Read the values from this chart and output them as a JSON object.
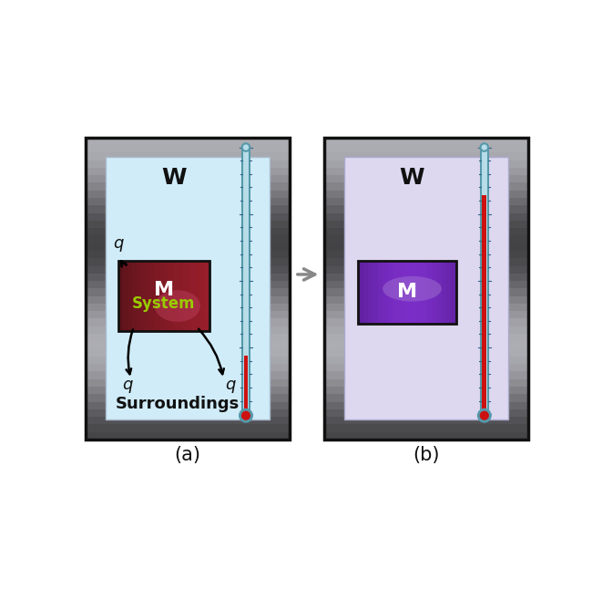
{
  "fig_width": 6.5,
  "fig_height": 6.47,
  "bg_color": "#ffffff",
  "metal_dark_gray": "#2a2a2a",
  "metal_mid_gray": "#808080",
  "metal_light_gray": "#cccccc",
  "container_inner_color_a": "#d0ecf8",
  "container_inner_color_b": "#ddd8f0",
  "metal_color_a_dark": "#5a0a14",
  "metal_color_a_mid": "#9b2030",
  "metal_color_a_light": "#c04060",
  "metal_color_b_dark": "#3a1850",
  "metal_color_b_mid": "#7040a0",
  "metal_color_b_light": "#9966cc",
  "thermometer_glass_color": "#b8dde8",
  "thermometer_glass_edge": "#5599aa",
  "thermometer_mercury_color": "#cc1111",
  "thermometer_tick_color": "#336688",
  "label_a": "(a)",
  "label_b": "(b)",
  "W_label": "W",
  "M_label": "M",
  "system_label": "System",
  "surroundings_label": "Surroundings",
  "q_label": "q",
  "connect_arrow_color": "#888888",
  "system_label_color": "#99cc00",
  "metal_text_color": "#ffffff",
  "black": "#111111"
}
